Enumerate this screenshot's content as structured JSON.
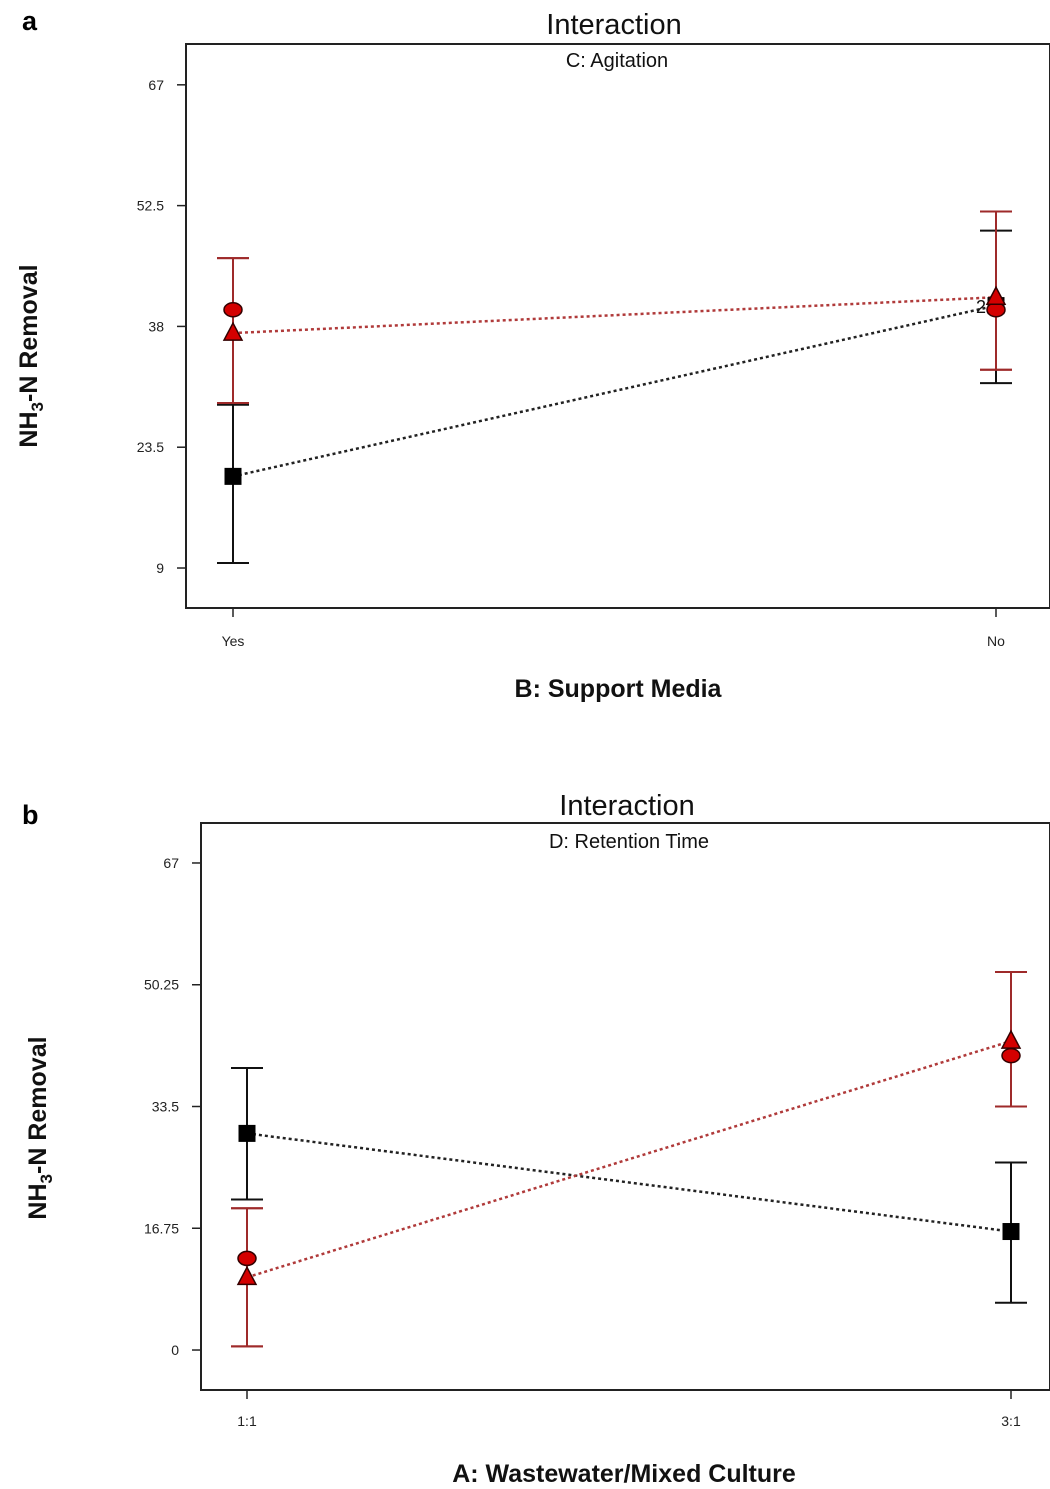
{
  "chart_data": [
    {
      "type": "line",
      "panel_label": "a",
      "title": "Interaction",
      "subtitle": "C: Agitation",
      "xlabel": "B: Support Media",
      "ylabel_parts": [
        "NH",
        "3",
        "-N Removal"
      ],
      "categories": [
        "Yes",
        "No"
      ],
      "y_ticks": [
        "67",
        "52.5",
        "38",
        "23.5",
        "9"
      ],
      "y_tick_values": [
        67,
        52.5,
        38,
        23.5,
        9
      ],
      "ylim": [
        4.2,
        71.9
      ],
      "overlap_label": "2",
      "series": [
        {
          "marker": "square",
          "color": "#000000",
          "values": [
            20.0,
            40.5
          ],
          "lower": [
            9.6,
            31.2
          ],
          "upper": [
            28.6,
            49.5
          ]
        },
        {
          "marker": "circle",
          "color": "#cc0000",
          "values": [
            40.0,
            40.0
          ],
          "lower": [
            28.8,
            32.8
          ],
          "upper": [
            46.2,
            51.8
          ]
        },
        {
          "marker": "triangle",
          "color": "#cc0000",
          "values": [
            37.2,
            41.5
          ],
          "lower": [
            28.8,
            32.8
          ],
          "upper": [
            46.2,
            51.8
          ]
        }
      ]
    },
    {
      "type": "line",
      "panel_label": "b",
      "title": "Interaction",
      "subtitle": "D: Retention Time",
      "xlabel": "A: Wastewater/Mixed Culture",
      "ylabel_parts": [
        "NH",
        "3",
        "-N Removal"
      ],
      "categories": [
        "1:1",
        "3:1"
      ],
      "y_ticks": [
        "67",
        "50.25",
        "33.5",
        "16.75",
        "0"
      ],
      "y_tick_values": [
        67,
        50.25,
        33.5,
        16.75,
        0
      ],
      "ylim": [
        -5.5,
        72.5
      ],
      "overlap_label": "",
      "series": [
        {
          "marker": "square",
          "color": "#000000",
          "values": [
            29.8,
            16.3
          ],
          "lower": [
            20.7,
            6.5
          ],
          "upper": [
            38.8,
            25.8
          ]
        },
        {
          "marker": "circle",
          "color": "#cc0000",
          "values": [
            12.6,
            40.5
          ],
          "lower": [
            0.5,
            33.5
          ],
          "upper": [
            19.5,
            52.0
          ]
        },
        {
          "marker": "triangle",
          "color": "#cc0000",
          "values": [
            10.0,
            42.5
          ],
          "lower": [
            0.5,
            33.5
          ],
          "upper": [
            19.5,
            52.0
          ]
        }
      ]
    }
  ]
}
